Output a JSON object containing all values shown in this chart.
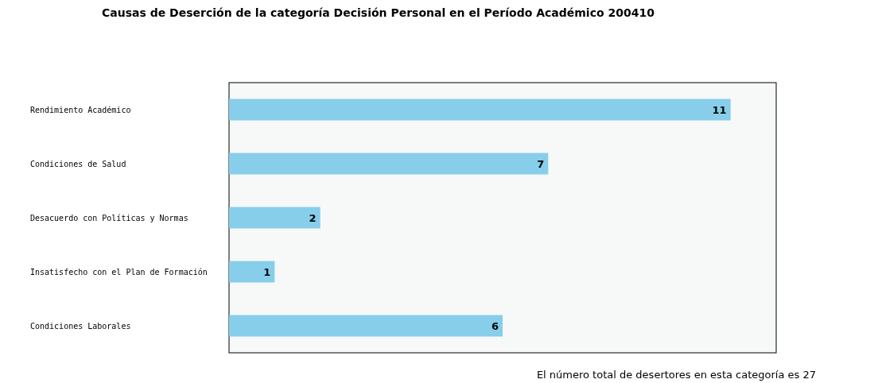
{
  "chart_data": {
    "type": "bar",
    "orientation": "horizontal",
    "title": "Causas de Deserción de la categoría Decisión Personal en el Período Académico 200410",
    "categories": [
      "Rendimiento Académico",
      "Condiciones de Salud",
      "Desacuerdo con Políticas y Normas",
      "Insatisfecho con el Plan de Formación",
      "Condiciones Laborales"
    ],
    "values": [
      11,
      7,
      2,
      1,
      6
    ],
    "color": "#87ceeb",
    "data_labels": true,
    "annotations": [
      "El número total de desertores en esta categoría es 27"
    ]
  }
}
